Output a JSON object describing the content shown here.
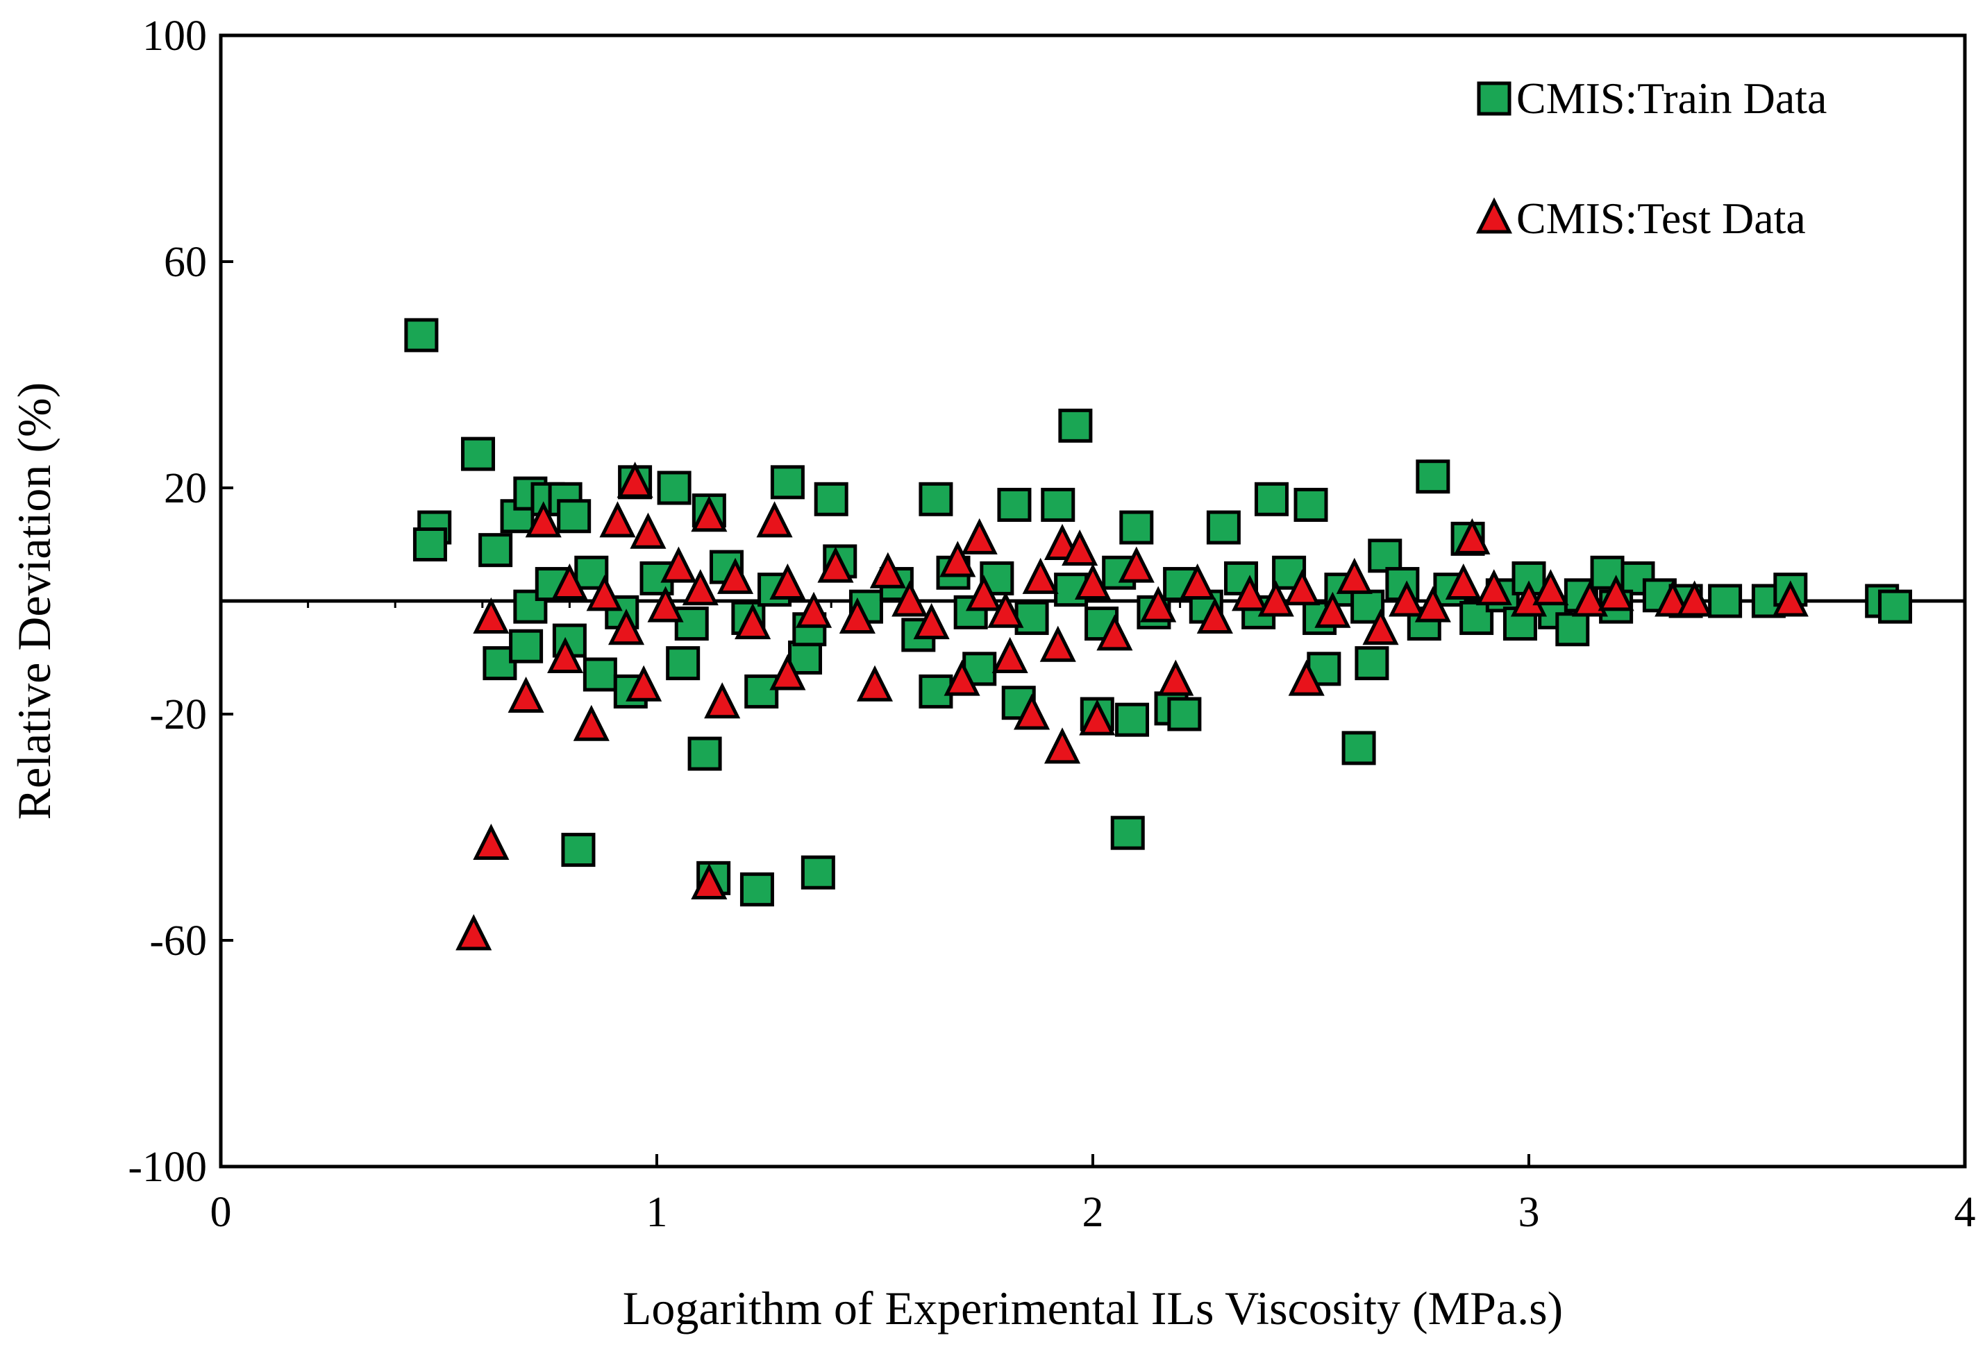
{
  "chart_data": {
    "type": "scatter",
    "title": "",
    "xlabel": "Logarithm of Experimental ILs Viscosity (MPa.s)",
    "ylabel": "Relative Deviation (%)",
    "xlim": [
      0,
      4
    ],
    "ylim": [
      -100,
      100
    ],
    "x_ticks": [
      "0",
      "1",
      "2",
      "3",
      "4"
    ],
    "y_ticks": [
      "100",
      "60",
      "20",
      "-20",
      "-60",
      "-100"
    ],
    "legend_position": "top-right",
    "colors": {
      "train": "#1aa654",
      "test": "#e8131b",
      "edge": "#000000"
    },
    "series": [
      {
        "name": "CMIS:Train Data",
        "marker": "square",
        "points": [
          [
            0.46,
            47
          ],
          [
            0.59,
            26
          ],
          [
            0.49,
            13
          ],
          [
            0.48,
            10
          ],
          [
            0.63,
            9
          ],
          [
            0.68,
            15
          ],
          [
            0.71,
            19
          ],
          [
            0.75,
            18
          ],
          [
            0.79,
            18
          ],
          [
            0.81,
            15
          ],
          [
            0.95,
            21
          ],
          [
            1.04,
            20
          ],
          [
            1.12,
            16
          ],
          [
            1.3,
            21
          ],
          [
            1.4,
            18
          ],
          [
            1.64,
            18
          ],
          [
            1.82,
            17
          ],
          [
            1.92,
            17
          ],
          [
            1.96,
            31
          ],
          [
            2.1,
            13
          ],
          [
            2.3,
            13
          ],
          [
            2.41,
            18
          ],
          [
            2.5,
            17
          ],
          [
            2.78,
            22
          ],
          [
            2.67,
            8
          ],
          [
            2.86,
            11
          ],
          [
            0.64,
            -11
          ],
          [
            0.7,
            -8
          ],
          [
            0.71,
            -1
          ],
          [
            0.8,
            -7
          ],
          [
            0.87,
            -13
          ],
          [
            0.94,
            -16
          ],
          [
            1.06,
            -11
          ],
          [
            1.24,
            -16
          ],
          [
            1.34,
            -10
          ],
          [
            1.64,
            -16
          ],
          [
            1.74,
            -12
          ],
          [
            1.83,
            -18
          ],
          [
            2.01,
            -20
          ],
          [
            2.09,
            -21
          ],
          [
            2.18,
            -19
          ],
          [
            2.21,
            -20
          ],
          [
            2.53,
            -12
          ],
          [
            2.64,
            -11
          ],
          [
            2.61,
            -26
          ],
          [
            1.11,
            -27
          ],
          [
            2.08,
            -41
          ],
          [
            0.82,
            -44
          ],
          [
            1.13,
            -49
          ],
          [
            1.23,
            -51
          ],
          [
            1.37,
            -48
          ],
          [
            0.76,
            3
          ],
          [
            0.85,
            5
          ],
          [
            0.92,
            -2
          ],
          [
            1.0,
            4
          ],
          [
            1.08,
            -4
          ],
          [
            1.16,
            6
          ],
          [
            1.21,
            -3
          ],
          [
            1.27,
            2
          ],
          [
            1.35,
            -5
          ],
          [
            1.42,
            7
          ],
          [
            1.48,
            -1
          ],
          [
            1.55,
            3
          ],
          [
            1.6,
            -6
          ],
          [
            1.68,
            5
          ],
          [
            1.72,
            -2
          ],
          [
            1.78,
            4
          ],
          [
            1.86,
            -3
          ],
          [
            1.95,
            2
          ],
          [
            2.02,
            -4
          ],
          [
            2.06,
            5
          ],
          [
            2.14,
            -2
          ],
          [
            2.2,
            3
          ],
          [
            2.26,
            -1
          ],
          [
            2.34,
            4
          ],
          [
            2.38,
            -2
          ],
          [
            2.45,
            5
          ],
          [
            2.52,
            -3
          ],
          [
            2.57,
            2
          ],
          [
            2.63,
            -1
          ],
          [
            2.71,
            3
          ],
          [
            2.76,
            -4
          ],
          [
            2.82,
            2
          ],
          [
            2.88,
            -3
          ],
          [
            2.94,
            1
          ],
          [
            3.0,
            4
          ],
          [
            3.06,
            -2
          ],
          [
            3.12,
            1
          ],
          [
            3.18,
            5
          ],
          [
            3.25,
            4
          ],
          [
            3.3,
            1
          ],
          [
            3.36,
            0
          ],
          [
            3.45,
            0
          ],
          [
            3.55,
            0
          ],
          [
            3.6,
            2
          ],
          [
            3.81,
            0
          ],
          [
            3.84,
            -1
          ],
          [
            3.2,
            -1
          ],
          [
            3.1,
            -5
          ],
          [
            2.98,
            -4
          ]
        ]
      },
      {
        "name": "CMIS:Test Data",
        "marker": "triangle",
        "points": [
          [
            0.58,
            -59
          ],
          [
            0.62,
            -43
          ],
          [
            0.62,
            -3
          ],
          [
            0.7,
            -17
          ],
          [
            0.79,
            -10
          ],
          [
            0.85,
            -22
          ],
          [
            0.74,
            14
          ],
          [
            0.91,
            14
          ],
          [
            0.95,
            21
          ],
          [
            0.98,
            12
          ],
          [
            1.12,
            15
          ],
          [
            1.27,
            14
          ],
          [
            1.74,
            11
          ],
          [
            1.93,
            10
          ],
          [
            1.97,
            9
          ],
          [
            2.87,
            11
          ],
          [
            0.97,
            -15
          ],
          [
            1.15,
            -18
          ],
          [
            1.3,
            -13
          ],
          [
            1.5,
            -15
          ],
          [
            1.7,
            -14
          ],
          [
            1.81,
            -10
          ],
          [
            1.93,
            -26
          ],
          [
            1.86,
            -20
          ],
          [
            2.01,
            -21
          ],
          [
            2.19,
            -14
          ],
          [
            2.49,
            -14
          ],
          [
            1.12,
            -50
          ],
          [
            0.8,
            3
          ],
          [
            0.88,
            1
          ],
          [
            0.93,
            -5
          ],
          [
            1.02,
            -1
          ],
          [
            1.05,
            6
          ],
          [
            1.1,
            2
          ],
          [
            1.18,
            4
          ],
          [
            1.22,
            -4
          ],
          [
            1.3,
            3
          ],
          [
            1.36,
            -2
          ],
          [
            1.41,
            6
          ],
          [
            1.46,
            -3
          ],
          [
            1.53,
            5
          ],
          [
            1.58,
            0
          ],
          [
            1.63,
            -4
          ],
          [
            1.69,
            7
          ],
          [
            1.75,
            1
          ],
          [
            1.8,
            -2
          ],
          [
            1.88,
            4
          ],
          [
            1.92,
            -8
          ],
          [
            2.0,
            3
          ],
          [
            2.05,
            -6
          ],
          [
            2.1,
            6
          ],
          [
            2.15,
            -1
          ],
          [
            2.24,
            3
          ],
          [
            2.28,
            -3
          ],
          [
            2.36,
            1
          ],
          [
            2.42,
            0
          ],
          [
            2.48,
            2
          ],
          [
            2.55,
            -2
          ],
          [
            2.6,
            4
          ],
          [
            2.66,
            -5
          ],
          [
            2.72,
            0
          ],
          [
            2.78,
            -1
          ],
          [
            2.85,
            3
          ],
          [
            2.92,
            2
          ],
          [
            3.0,
            0
          ],
          [
            3.05,
            2
          ],
          [
            3.14,
            0
          ],
          [
            3.2,
            1
          ],
          [
            3.33,
            0
          ],
          [
            3.38,
            0
          ],
          [
            3.6,
            0
          ]
        ]
      }
    ]
  }
}
